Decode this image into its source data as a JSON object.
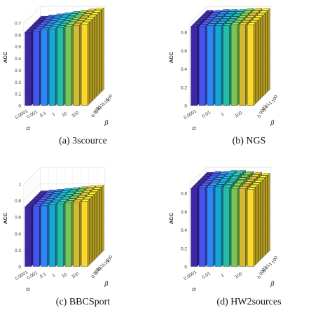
{
  "chart_data": [
    {
      "type": "bar3d",
      "caption": "(a)  3scource",
      "zlabel": "ACC",
      "xlabel": "α",
      "ylabel": "β",
      "alpha_ticks": [
        "0.0001",
        "0.001",
        "0.1",
        "1",
        "10",
        "100"
      ],
      "beta_ticks": [
        "0.001",
        "0.01",
        "0.1",
        "1",
        "10",
        "100"
      ],
      "z_ticks": [
        "0",
        "0.1",
        "0.2",
        "0.3",
        "0.4",
        "0.5",
        "0.6",
        "0.7"
      ],
      "zlim": [
        0,
        0.7
      ],
      "grid": true,
      "values": [
        [
          0.62,
          0.63,
          0.64,
          0.65,
          0.66,
          0.67,
          0.68,
          0.69
        ],
        [
          0.62,
          0.63,
          0.64,
          0.65,
          0.66,
          0.67,
          0.68,
          0.69
        ],
        [
          0.62,
          0.63,
          0.64,
          0.65,
          0.66,
          0.67,
          0.68,
          0.69
        ],
        [
          0.62,
          0.63,
          0.64,
          0.65,
          0.66,
          0.67,
          0.68,
          0.69
        ],
        [
          0.62,
          0.63,
          0.64,
          0.65,
          0.66,
          0.67,
          0.68,
          0.69
        ],
        [
          0.62,
          0.63,
          0.64,
          0.65,
          0.66,
          0.67,
          0.68,
          0.69
        ],
        [
          0.62,
          0.63,
          0.64,
          0.65,
          0.66,
          0.67,
          0.68,
          0.69
        ]
      ]
    },
    {
      "type": "bar3d",
      "caption": "(b)  NGS",
      "zlabel": "ACC",
      "xlabel": "α",
      "ylabel": "β",
      "alpha_ticks": [
        "0.0001",
        "0.01",
        "1",
        "100"
      ],
      "beta_ticks": [
        "0.0001",
        "0.01",
        "1",
        "100"
      ],
      "z_ticks": [
        "0",
        "0.2",
        "0.4",
        "0.6",
        "0.8"
      ],
      "zlim": [
        0,
        0.9
      ],
      "grid": true,
      "values": [
        [
          0.86,
          0.86,
          0.87,
          0.87,
          0.87,
          0.88,
          0.88,
          0.88
        ],
        [
          0.86,
          0.86,
          0.87,
          0.87,
          0.87,
          0.88,
          0.88,
          0.88
        ],
        [
          0.86,
          0.86,
          0.87,
          0.87,
          0.87,
          0.88,
          0.88,
          0.88
        ],
        [
          0.86,
          0.86,
          0.87,
          0.87,
          0.87,
          0.88,
          0.88,
          0.88
        ],
        [
          0.86,
          0.86,
          0.87,
          0.87,
          0.87,
          0.88,
          0.88,
          0.88
        ],
        [
          0.86,
          0.86,
          0.87,
          0.87,
          0.87,
          0.88,
          0.88,
          0.88
        ],
        [
          0.86,
          0.86,
          0.87,
          0.87,
          0.87,
          0.88,
          0.88,
          0.88
        ]
      ]
    },
    {
      "type": "bar3d",
      "caption": "(c)  BBCSport",
      "zlabel": "ACC",
      "xlabel": "α",
      "ylabel": "β",
      "alpha_ticks": [
        "0.0001",
        "0.001",
        "0.1",
        "1",
        "10",
        "100"
      ],
      "beta_ticks": [
        "0.001",
        "0.01",
        "0.1",
        "1",
        "10",
        "100"
      ],
      "z_ticks": [
        "0",
        "0.2",
        "0.4",
        "0.6",
        "0.8",
        "1"
      ],
      "zlim": [
        0,
        1
      ],
      "grid": true,
      "values": [
        [
          0.72,
          0.73,
          0.74,
          0.75,
          0.76,
          0.77,
          0.78,
          0.79
        ],
        [
          0.72,
          0.73,
          0.74,
          0.75,
          0.76,
          0.77,
          0.78,
          0.79
        ],
        [
          0.72,
          0.73,
          0.74,
          0.75,
          0.76,
          0.77,
          0.78,
          0.79
        ],
        [
          0.72,
          0.73,
          0.74,
          0.75,
          0.76,
          0.77,
          0.78,
          0.79
        ],
        [
          0.72,
          0.73,
          0.74,
          0.75,
          0.76,
          0.77,
          0.78,
          0.79
        ],
        [
          0.72,
          0.73,
          0.74,
          0.75,
          0.76,
          0.77,
          0.78,
          0.79
        ],
        [
          0.72,
          0.73,
          0.74,
          0.75,
          0.76,
          0.77,
          0.78,
          0.79
        ]
      ]
    },
    {
      "type": "bar3d",
      "caption": "(d)  HW2sources",
      "zlabel": "ACC",
      "xlabel": "α",
      "ylabel": "β",
      "alpha_ticks": [
        "0.0001",
        "0.01",
        "1",
        "100"
      ],
      "beta_ticks": [
        "0.0001",
        "0.01",
        "1",
        "100"
      ],
      "z_ticks": [
        "0",
        "0.2",
        "0.4",
        "0.6",
        "0.8"
      ],
      "zlim": [
        0,
        0.9
      ],
      "grid": true,
      "values": [
        [
          0.85,
          0.86,
          0.86,
          0.87,
          0.86,
          0.85,
          0.85,
          0.84
        ],
        [
          0.85,
          0.86,
          0.86,
          0.87,
          0.87,
          0.86,
          0.85,
          0.84
        ],
        [
          0.85,
          0.86,
          0.87,
          0.88,
          0.87,
          0.86,
          0.85,
          0.84
        ],
        [
          0.85,
          0.86,
          0.87,
          0.88,
          0.88,
          0.87,
          0.85,
          0.84
        ],
        [
          0.85,
          0.86,
          0.87,
          0.88,
          0.89,
          0.87,
          0.85,
          0.84
        ],
        [
          0.85,
          0.86,
          0.87,
          0.88,
          0.88,
          0.87,
          0.85,
          0.84
        ],
        [
          0.85,
          0.86,
          0.86,
          0.87,
          0.87,
          0.86,
          0.85,
          0.84
        ]
      ]
    }
  ]
}
